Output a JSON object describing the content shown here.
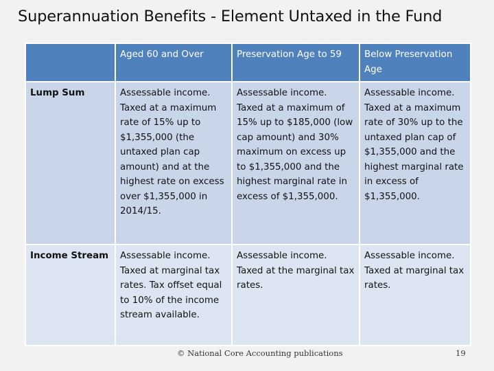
{
  "slide": {
    "title": "Superannuation Benefits - Element Untaxed in the Fund",
    "footer": "© National Core Accounting publications",
    "page_number": "19"
  },
  "table": {
    "headers": [
      "",
      "Aged 60 and Over",
      "Preservation Age to 59",
      "Below Preservation Age"
    ],
    "rows": [
      {
        "label": "Lump Sum",
        "cells": [
          "Assessable income. Taxed at a maximum rate of 15% up to $1,355,000 (the untaxed plan cap amount) and at the highest rate on excess over $1,355,000 in 2014/15.",
          "Assessable income. Taxed at a maximum of 15% up to $185,000 (low cap amount) and 30% maximum on excess up to $1,355,000 and the highest marginal rate in excess of $1,355,000.",
          "Assessable income. Taxed at a maximum rate of 30% up to the untaxed plan cap of $1,355,000 and the highest marginal rate in excess of $1,355,000."
        ]
      },
      {
        "label": "Income Stream",
        "cells": [
          "Assessable income. Taxed at marginal tax rates. Tax offset equal to 10% of the income stream available.",
          "Assessable income. Taxed at the marginal tax rates.",
          "Assessable income. Taxed at marginal tax rates."
        ]
      }
    ]
  }
}
